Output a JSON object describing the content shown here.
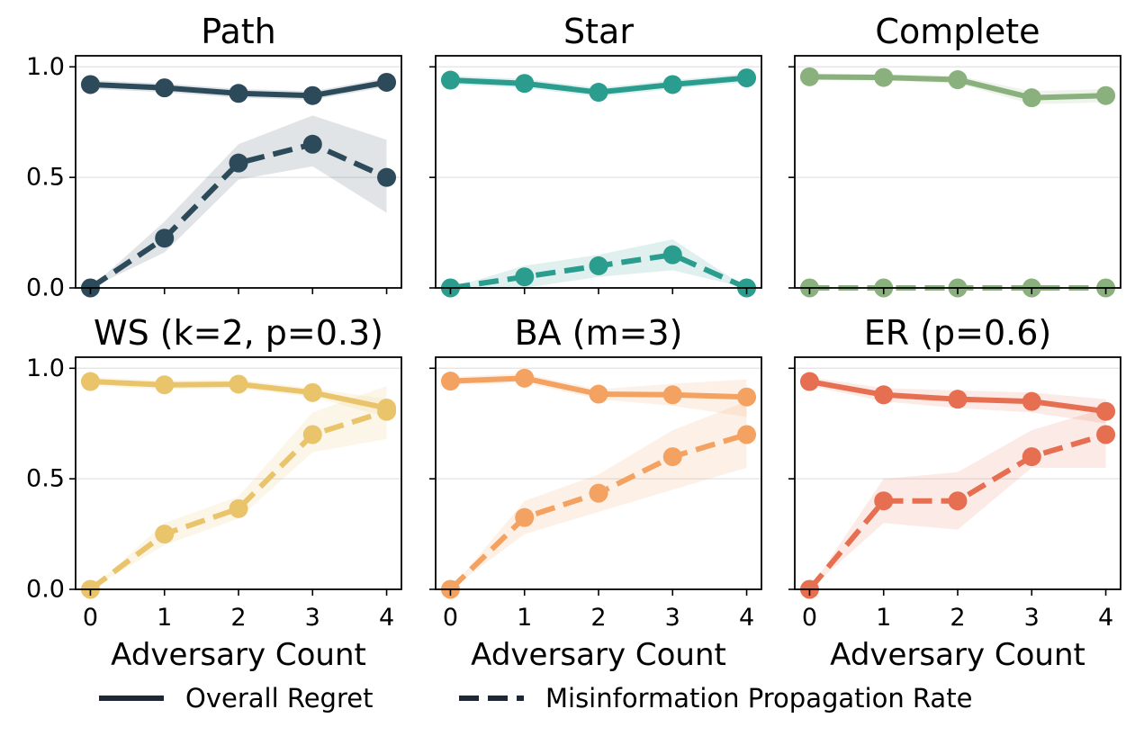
{
  "chart_data": {
    "type": "line",
    "x": [
      0,
      1,
      2,
      3,
      4
    ],
    "x_ticks": [
      "0",
      "1",
      "2",
      "3",
      "4"
    ],
    "y_ticks": [
      "0.0",
      "0.5",
      "1.0"
    ],
    "ylim": [
      0,
      1.05
    ],
    "xlim": [
      -0.2,
      4.2
    ],
    "grid": "horizontal",
    "legend": {
      "placement": "bottom",
      "entries": [
        {
          "label": "Overall Regret",
          "style": "solid",
          "color": "#1d2735"
        },
        {
          "label": "Misinformation Propagation Rate",
          "style": "dashed",
          "color": "#1d2735"
        }
      ]
    },
    "panels": [
      {
        "title": "Path",
        "xlabel": "",
        "color": "#2d4a5a",
        "series": [
          {
            "name": "Overall Regret",
            "values": [
              0.92,
              0.905,
              0.88,
              0.87,
              0.93
            ],
            "lower": [
              0.9,
              0.885,
              0.86,
              0.85,
              0.91
            ],
            "upper": [
              0.94,
              0.925,
              0.9,
              0.89,
              0.95
            ]
          },
          {
            "name": "Misinformation Propagation Rate",
            "values": [
              0.0,
              0.225,
              0.565,
              0.65,
              0.5
            ],
            "lower": [
              0.0,
              0.16,
              0.49,
              0.55,
              0.34
            ],
            "upper": [
              0.0,
              0.3,
              0.65,
              0.78,
              0.67
            ]
          }
        ]
      },
      {
        "title": "Star",
        "xlabel": "",
        "color": "#2a9d8f",
        "series": [
          {
            "name": "Overall Regret",
            "values": [
              0.94,
              0.925,
              0.885,
              0.92,
              0.95
            ],
            "lower": [
              0.92,
              0.905,
              0.865,
              0.9,
              0.93
            ],
            "upper": [
              0.96,
              0.945,
              0.905,
              0.94,
              0.97
            ]
          },
          {
            "name": "Misinformation Propagation Rate",
            "values": [
              0.0,
              0.05,
              0.1,
              0.15,
              0.0
            ],
            "lower": [
              0.0,
              0.0,
              0.05,
              0.08,
              0.0
            ],
            "upper": [
              0.0,
              0.1,
              0.15,
              0.22,
              0.0
            ]
          }
        ]
      },
      {
        "title": "Complete",
        "xlabel": "",
        "color": "#8ab17d",
        "series": [
          {
            "name": "Overall Regret",
            "values": [
              0.955,
              0.952,
              0.942,
              0.86,
              0.87
            ],
            "lower": [
              0.94,
              0.937,
              0.925,
              0.83,
              0.84
            ],
            "upper": [
              0.97,
              0.967,
              0.96,
              0.89,
              0.9
            ]
          },
          {
            "name": "Misinformation Propagation Rate",
            "values": [
              0.0,
              0.0,
              0.0,
              0.0,
              0.0
            ],
            "lower": [
              0.0,
              0.0,
              0.0,
              0.0,
              0.0
            ],
            "upper": [
              0.0,
              0.0,
              0.0,
              0.0,
              0.0
            ]
          }
        ]
      },
      {
        "title": "WS (k=2, p=0.3)",
        "xlabel": "Adversary Count",
        "color": "#e9c46a",
        "series": [
          {
            "name": "Overall Regret",
            "values": [
              0.94,
              0.925,
              0.928,
              0.89,
              0.82
            ],
            "lower": [
              0.92,
              0.905,
              0.908,
              0.87,
              0.78
            ],
            "upper": [
              0.96,
              0.945,
              0.948,
              0.91,
              0.86
            ]
          },
          {
            "name": "Misinformation Propagation Rate",
            "values": [
              0.0,
              0.25,
              0.365,
              0.7,
              0.805
            ],
            "lower": [
              0.0,
              0.2,
              0.32,
              0.62,
              0.68
            ],
            "upper": [
              0.0,
              0.3,
              0.42,
              0.8,
              0.92
            ]
          }
        ]
      },
      {
        "title": "BA (m=3)",
        "xlabel": "Adversary Count",
        "color": "#f4a261",
        "series": [
          {
            "name": "Overall Regret",
            "values": [
              0.942,
              0.955,
              0.883,
              0.88,
              0.87
            ],
            "lower": [
              0.922,
              0.935,
              0.86,
              0.83,
              0.78
            ],
            "upper": [
              0.962,
              0.975,
              0.905,
              0.93,
              0.95
            ]
          },
          {
            "name": "Misinformation Propagation Rate",
            "values": [
              0.0,
              0.325,
              0.435,
              0.6,
              0.7
            ],
            "lower": [
              0.0,
              0.25,
              0.35,
              0.45,
              0.55
            ],
            "upper": [
              0.0,
              0.4,
              0.52,
              0.72,
              0.85
            ]
          }
        ]
      },
      {
        "title": "ER (p=0.6)",
        "xlabel": "Adversary Count",
        "color": "#e76f51",
        "series": [
          {
            "name": "Overall Regret",
            "values": [
              0.94,
              0.88,
              0.86,
              0.85,
              0.805
            ],
            "lower": [
              0.92,
              0.85,
              0.82,
              0.8,
              0.75
            ],
            "upper": [
              0.96,
              0.91,
              0.9,
              0.89,
              0.86
            ]
          },
          {
            "name": "Misinformation Propagation Rate",
            "values": [
              0.0,
              0.4,
              0.4,
              0.6,
              0.7
            ],
            "lower": [
              0.0,
              0.3,
              0.27,
              0.55,
              0.55
            ],
            "upper": [
              0.0,
              0.5,
              0.53,
              0.72,
              0.82
            ]
          }
        ]
      }
    ]
  }
}
